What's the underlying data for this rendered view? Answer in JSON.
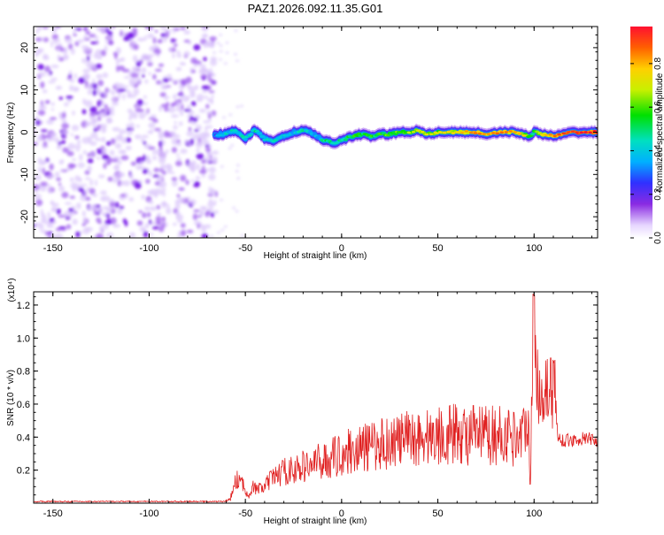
{
  "title": "PAZ1.2026.092.11.35.G01",
  "chart_data": [
    {
      "type": "heatmap",
      "name": "spectrogram",
      "xlabel": "Height of straight line (km)",
      "ylabel": "Frequency (Hz)",
      "xlim": [
        -160,
        133
      ],
      "ylim": [
        -25,
        25
      ],
      "xticks": [
        -150,
        -100,
        -50,
        0,
        50,
        100
      ],
      "yticks": [
        -20,
        -10,
        0,
        10,
        20
      ],
      "noise_region_x": [
        -160,
        -65
      ],
      "signal_track": {
        "x": [
          -66,
          -60,
          -55,
          -50,
          -45,
          -40,
          -35,
          -30,
          -25,
          -20,
          -17,
          -15,
          -12,
          -10,
          -7,
          -5,
          0,
          5,
          10,
          15,
          20,
          25,
          30,
          35,
          40,
          45,
          50,
          55,
          60,
          65,
          70,
          75,
          80,
          85,
          90,
          95,
          98,
          100,
          105,
          110,
          115,
          120,
          125,
          133
        ],
        "y": [
          -0.5,
          -0.5,
          0.5,
          -1.5,
          0.5,
          -1.5,
          -2.0,
          -1.0,
          0.0,
          0.5,
          0.0,
          -0.5,
          -1.0,
          -2.0,
          -2.3,
          -2.5,
          -2.0,
          -1.0,
          -0.5,
          -1.0,
          -0.5,
          -0.5,
          0.0,
          0.0,
          0.5,
          -0.5,
          0.0,
          0.0,
          0.0,
          0.0,
          0.0,
          -0.5,
          0.0,
          0.0,
          0.0,
          -0.5,
          -1.0,
          0.0,
          -0.5,
          -1.0,
          -0.5,
          0.0,
          0.0,
          0.0
        ],
        "amplitude": [
          0.3,
          0.4,
          0.45,
          0.4,
          0.45,
          0.4,
          0.4,
          0.4,
          0.4,
          0.45,
          0.4,
          0.4,
          0.35,
          0.45,
          0.5,
          0.45,
          0.5,
          0.55,
          0.55,
          0.55,
          0.55,
          0.6,
          0.6,
          0.6,
          0.65,
          0.65,
          0.65,
          0.7,
          0.7,
          0.75,
          0.8,
          0.75,
          0.8,
          0.8,
          0.75,
          0.7,
          0.55,
          0.55,
          0.7,
          0.8,
          0.85,
          0.85,
          0.9,
          0.9
        ]
      },
      "colorbar": {
        "label": "Normalized spectral amplitude",
        "ticks": [
          0.0,
          0.2,
          0.4,
          0.6,
          0.8
        ],
        "tick_labels": [
          "0.0",
          "0.2",
          "0.4",
          "0.6",
          "0.8"
        ],
        "range": [
          0.0,
          0.97
        ]
      }
    },
    {
      "type": "line",
      "name": "snr",
      "xlabel": "Height of straight line (km)",
      "ylabel": "SNR (10 * v/v)",
      "scale_label": "(x10⁴)",
      "xlim": [
        -160,
        133
      ],
      "ylim": [
        0.0,
        1.28
      ],
      "xticks": [
        -150,
        -100,
        -50,
        0,
        50,
        100
      ],
      "yticks": [
        0.2,
        0.4,
        0.6,
        0.8,
        1.0,
        1.2
      ],
      "ytick_labels": [
        "0.2",
        "0.4",
        "0.6",
        "0.8",
        "1.0",
        "1.2"
      ],
      "color": "#e02020",
      "series": [
        {
          "name": "SNR",
          "x": [
            -160,
            -62,
            -58,
            -56,
            -54,
            -52,
            -50,
            -48,
            -46,
            -44,
            -40,
            -36,
            -32,
            -28,
            -24,
            -20,
            -16,
            -12,
            -8,
            -4,
            0,
            5,
            10,
            15,
            20,
            25,
            30,
            35,
            40,
            45,
            50,
            55,
            60,
            65,
            70,
            75,
            80,
            85,
            90,
            94,
            96,
            97,
            98,
            99,
            100,
            101,
            102,
            104,
            106,
            108,
            110,
            111,
            112,
            115,
            120,
            125,
            130,
            133
          ],
          "y": [
            0.01,
            0.01,
            0.02,
            0.1,
            0.15,
            0.12,
            0.08,
            0.05,
            0.1,
            0.08,
            0.1,
            0.15,
            0.18,
            0.2,
            0.2,
            0.22,
            0.23,
            0.25,
            0.26,
            0.28,
            0.3,
            0.32,
            0.33,
            0.34,
            0.36,
            0.37,
            0.38,
            0.39,
            0.4,
            0.4,
            0.41,
            0.42,
            0.42,
            0.41,
            0.41,
            0.41,
            0.41,
            0.41,
            0.4,
            0.42,
            0.5,
            0.55,
            0.1,
            0.7,
            1.25,
            0.8,
            0.72,
            0.68,
            0.7,
            0.7,
            0.68,
            0.7,
            0.4,
            0.38,
            0.38,
            0.39,
            0.39,
            0.38
          ]
        }
      ]
    }
  ]
}
